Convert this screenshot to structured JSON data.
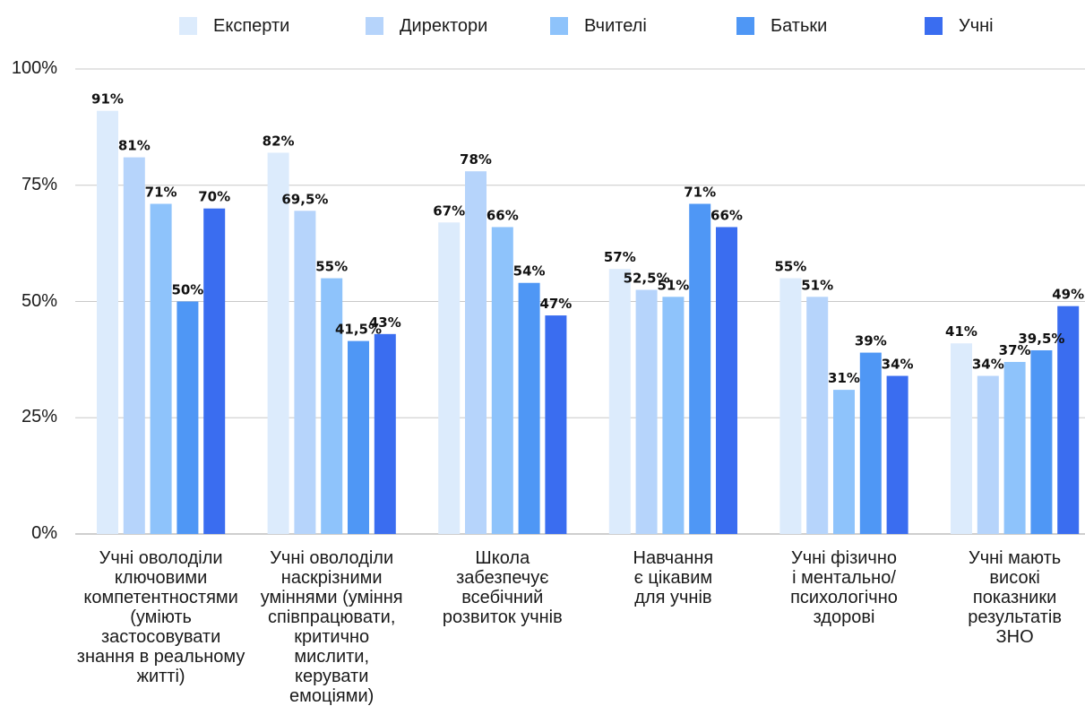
{
  "chart_data": {
    "type": "bar",
    "ylim": [
      0,
      100
    ],
    "yticks": [
      "0%",
      "25%",
      "50%",
      "75%",
      "100%"
    ],
    "grid": true,
    "legend_position": "top",
    "categories": [
      "Учні оволоділи\nключовими\nкомпетентностями\n(уміють\nзастосовувати\nзнання в реальному\nжитті)",
      "Учні оволоділи\nнаскрізними\nуміннями (уміння\nспівпрацювати,\nкритично\nмислити,\nкерувати\nемоціями)",
      "Школа\nзабезпечує\nвсебічний\nрозвиток учнів",
      "Навчання\nє цікавим\nдля учнів",
      "Учні фізично\nі ментально/\nпсихологічно\nздорові",
      "Учні мають\nвисокі\nпоказники\nрезультатів\nЗНО"
    ],
    "series": [
      {
        "name": "Експерти",
        "color": "#dcebfc",
        "values": [
          91,
          82,
          67,
          57,
          55,
          41
        ],
        "labels": [
          "91%",
          "82%",
          "67%",
          "57%",
          "55%",
          "41%"
        ]
      },
      {
        "name": "Директори",
        "color": "#b6d4fb",
        "values": [
          81,
          69.5,
          78,
          52.5,
          51,
          34
        ],
        "labels": [
          "81%",
          "69,5%",
          "78%",
          "52,5%",
          "51%",
          "34%"
        ]
      },
      {
        "name": "Вчителі",
        "color": "#8ec3fb",
        "values": [
          71,
          55,
          66,
          51,
          31,
          37
        ],
        "labels": [
          "71%",
          "55%",
          "66%",
          "51%",
          "31%",
          "37%"
        ]
      },
      {
        "name": "Батьки",
        "color": "#4f97f5",
        "values": [
          50,
          41.5,
          54,
          71,
          39,
          39.5
        ],
        "labels": [
          "50%",
          "41,5%",
          "54%",
          "71%",
          "39%",
          "39,5%"
        ]
      },
      {
        "name": "Учні",
        "color": "#3a6df0",
        "values": [
          70,
          43,
          47,
          66,
          34,
          49
        ],
        "labels": [
          "70%",
          "43%",
          "47%",
          "66%",
          "34%",
          "49%"
        ]
      }
    ]
  }
}
